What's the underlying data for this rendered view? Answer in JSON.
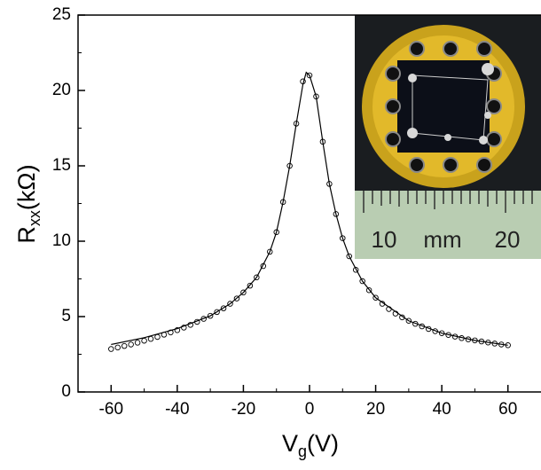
{
  "chart_data": {
    "type": "scatter",
    "xlabel": "V",
    "xlabel_sub": "g",
    "xlabel_suffix": "(V)",
    "ylabel": "R",
    "ylabel_sub": "xx",
    "ylabel_suffix": "(kΩ)",
    "xlim": [
      -70,
      70
    ],
    "ylim": [
      0,
      25
    ],
    "xticks": [
      -60,
      -40,
      -20,
      0,
      20,
      40,
      60
    ],
    "yticks": [
      0,
      5,
      10,
      15,
      20,
      25
    ],
    "series": [
      {
        "style": "markers",
        "color": "#000000",
        "x": [
          -60,
          -58,
          -56,
          -54,
          -52,
          -50,
          -48,
          -46,
          -44,
          -42,
          -40,
          -38,
          -36,
          -34,
          -32,
          -30,
          -28,
          -26,
          -24,
          -22,
          -20,
          -18,
          -16,
          -14,
          -12,
          -10,
          -8,
          -6,
          -4,
          -2,
          0,
          2,
          4,
          6,
          8,
          10,
          12,
          14,
          16,
          18,
          20,
          22,
          24,
          26,
          28,
          30,
          32,
          34,
          36,
          38,
          40,
          42,
          44,
          46,
          48,
          50,
          52,
          54,
          56,
          58,
          60
        ],
        "values": [
          2.85,
          2.95,
          3.05,
          3.15,
          3.27,
          3.4,
          3.52,
          3.65,
          3.8,
          3.95,
          4.1,
          4.27,
          4.45,
          4.65,
          4.85,
          5.05,
          5.3,
          5.55,
          5.85,
          6.2,
          6.6,
          7.05,
          7.6,
          8.35,
          9.3,
          10.6,
          12.6,
          15.0,
          17.8,
          20.6,
          21.0,
          19.6,
          16.6,
          13.8,
          11.8,
          10.2,
          9.0,
          8.1,
          7.35,
          6.75,
          6.25,
          5.85,
          5.5,
          5.2,
          4.95,
          4.72,
          4.52,
          4.35,
          4.18,
          4.03,
          3.9,
          3.78,
          3.67,
          3.57,
          3.49,
          3.42,
          3.35,
          3.28,
          3.21,
          3.15,
          3.1
        ]
      },
      {
        "style": "line",
        "color": "#000000",
        "x": [
          -60,
          -50,
          -40,
          -30,
          -24,
          -20,
          -16,
          -12,
          -10,
          -8,
          -6,
          -4,
          -2,
          -1,
          0,
          2,
          4,
          6,
          8,
          10,
          12,
          16,
          20,
          30,
          40,
          50,
          60
        ],
        "values": [
          3.15,
          3.6,
          4.2,
          5.05,
          5.85,
          6.6,
          7.6,
          9.3,
          10.6,
          12.6,
          15.0,
          17.8,
          20.4,
          21.2,
          21.0,
          19.6,
          16.6,
          13.8,
          11.8,
          10.2,
          9.0,
          7.35,
          6.25,
          4.72,
          3.9,
          3.42,
          3.1
        ]
      }
    ],
    "inset": {
      "ruler_labels": [
        "10",
        "mm",
        "20"
      ]
    }
  }
}
